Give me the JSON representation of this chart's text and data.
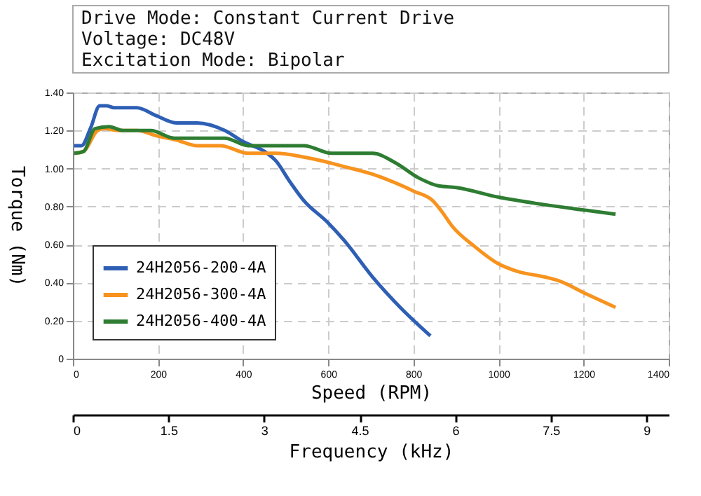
{
  "chart_data": {
    "type": "line",
    "annotations": [
      "Drive Mode: Constant Current Drive",
      "Voltage: DC48V",
      "Excitation Mode: Bipolar"
    ],
    "xlabel": "Speed (RPM)",
    "ylabel": "Torque (Nm)",
    "x2label": "Frequency (kHz)",
    "xlim": [
      0,
      1400
    ],
    "xticks": [
      0,
      200,
      400,
      600,
      800,
      1000,
      1200,
      1400
    ],
    "ylim": [
      0,
      1.4
    ],
    "yticks": [
      0,
      {
        "value": 0.2,
        "label": "0.20"
      },
      {
        "value": 0.4,
        "label": "0.40"
      },
      {
        "value": 0.6,
        "label": "0.60"
      },
      {
        "value": 0.8,
        "label": "0.80"
      },
      {
        "value": 1.0,
        "label": "1.00"
      },
      {
        "value": 1.2,
        "label": "1.20"
      },
      {
        "value": 1.4,
        "label": "1.40"
      }
    ],
    "x2lim": [
      0,
      9.35
    ],
    "x2ticks": [
      0,
      1.5,
      3,
      4.5,
      6,
      7.5,
      9
    ],
    "grid": true,
    "legend": "bottom left",
    "line_style": "solid",
    "marker": "none",
    "series": [
      {
        "name": "24H2056-200-4A",
        "color": "#2e5fb5",
        "x": [
          3,
          20,
          41,
          63,
          80,
          96,
          150,
          194,
          243,
          292,
          357,
          401,
          450,
          477,
          510,
          543,
          597,
          638,
          704,
          769,
          840
        ],
        "values": [
          1.12,
          1.12,
          1.21,
          1.33,
          1.33,
          1.32,
          1.32,
          1.28,
          1.24,
          1.24,
          1.2,
          1.14,
          1.09,
          1.04,
          0.93,
          0.83,
          0.72,
          0.62,
          0.43,
          0.27,
          0.12
        ]
      },
      {
        "name": "24H2056-300-4A",
        "color": "#f7931e",
        "x": [
          3,
          25,
          58,
          74,
          107,
          150,
          200,
          243,
          292,
          347,
          412,
          477,
          543,
          586,
          638,
          704,
          802,
          846,
          868,
          890,
          944,
          999,
          1043,
          1108,
          1141,
          1207,
          1275
        ],
        "values": [
          1.08,
          1.09,
          1.2,
          1.21,
          1.2,
          1.2,
          1.17,
          1.15,
          1.12,
          1.12,
          1.08,
          1.08,
          1.06,
          1.04,
          1.01,
          0.97,
          0.88,
          0.83,
          0.77,
          0.7,
          0.59,
          0.5,
          0.46,
          0.43,
          0.41,
          0.34,
          0.27
        ]
      },
      {
        "name": "24H2056-400-4A",
        "color": "#2e7d32",
        "x": [
          3,
          25,
          52,
          85,
          118,
          183,
          238,
          314,
          357,
          412,
          477,
          543,
          608,
          638,
          704,
          758,
          813,
          857,
          901,
          999,
          1108,
          1207,
          1275
        ],
        "values": [
          1.08,
          1.09,
          1.21,
          1.22,
          1.2,
          1.2,
          1.16,
          1.16,
          1.16,
          1.12,
          1.12,
          1.12,
          1.08,
          1.08,
          1.08,
          1.03,
          0.95,
          0.91,
          0.9,
          0.85,
          0.81,
          0.78,
          0.76
        ]
      }
    ]
  }
}
